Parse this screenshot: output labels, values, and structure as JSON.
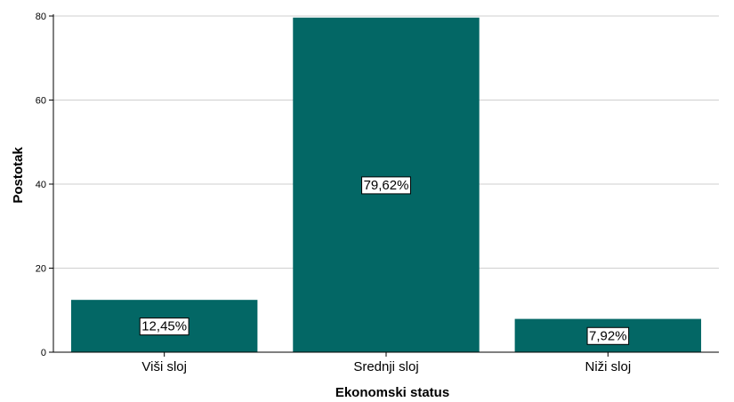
{
  "chart_data": {
    "type": "bar",
    "categories": [
      "Viši sloj",
      "Srednji sloj",
      "Niži sloj"
    ],
    "values": [
      12.45,
      79.62,
      7.92
    ],
    "data_labels": [
      "12,45%",
      "79,62%",
      "7,92%"
    ],
    "title": "",
    "xlabel": "Ekonomski status",
    "ylabel": "Postotak",
    "ylim": [
      0,
      80
    ],
    "yticks": [
      0,
      20,
      40,
      60,
      80
    ],
    "grid": true,
    "legend": "none",
    "bar_color": "#036765",
    "grid_color": "#cfcfcf"
  }
}
